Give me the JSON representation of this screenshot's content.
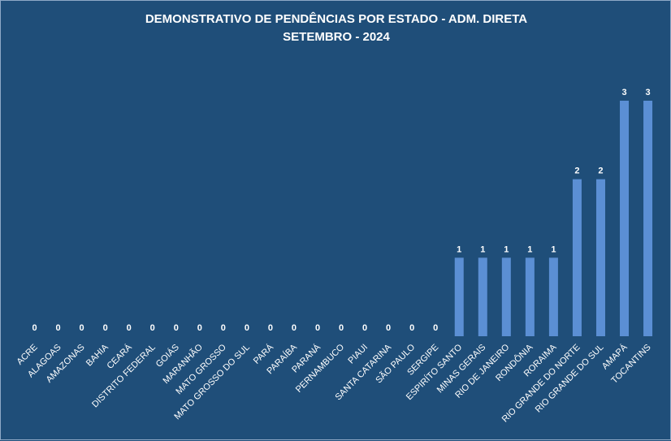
{
  "colors": {
    "background": "#1f4e79",
    "bar": "#5b8fd4",
    "text": "#ffffff",
    "border": "#8ea9c7"
  },
  "chart_data": {
    "type": "bar",
    "title": "DEMONSTRATIVO DE PENDÊNCIAS POR  ESTADO - ADM. DIRETA",
    "subtitle": "SETEMBRO - 2024",
    "categories": [
      "ACRE",
      "ALAGOAS",
      "AMAZONAS",
      "BAHIA",
      "CEARÁ",
      "DISTRITO FEDERAL",
      "GOIÁS",
      "MARANHÃO",
      "MATO GROSSO",
      "MATO GROSSO DO SUL",
      "PARÁ",
      "PARAÍBA",
      "PARANÁ",
      "PERNAMBUCO",
      "PIAUI",
      "SANTA CATARINA",
      "SÃO PAULO",
      "SERGIPE",
      "ESPIRÍTO SANTO",
      "MINAS GERAIS",
      "RIO DE JANEIRO",
      "RONDÔNIA",
      "RORAIMA",
      "RIO GRANDE DO NORTE",
      "RIO GRANDE DO SUL",
      "AMAPÁ",
      "TOCANTINS"
    ],
    "values": [
      0,
      0,
      0,
      0,
      0,
      0,
      0,
      0,
      0,
      0,
      0,
      0,
      0,
      0,
      0,
      0,
      0,
      0,
      1,
      1,
      1,
      1,
      1,
      2,
      2,
      3,
      3
    ],
    "data_labels": [
      "0",
      "0",
      "0",
      "0",
      "0",
      "0",
      "0",
      "0",
      "0",
      "0",
      "0",
      "0",
      "0",
      "0",
      "0",
      "0",
      "0",
      "0",
      "1",
      "1",
      "1",
      "1",
      "1",
      "2",
      "2",
      "3",
      "3"
    ],
    "ylim": [
      0,
      3
    ],
    "grid": false,
    "legend": "none",
    "xlabel": "",
    "ylabel": ""
  }
}
